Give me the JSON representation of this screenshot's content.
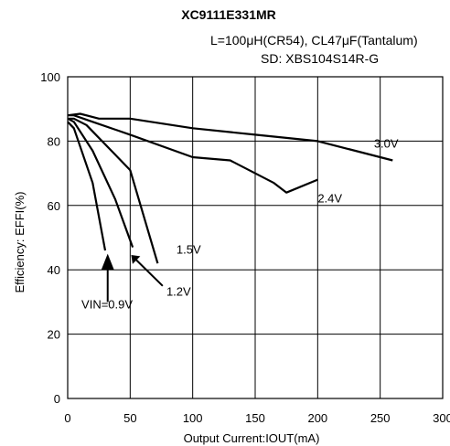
{
  "header": {
    "title": "XC9111E331MR",
    "subtitle_line1": "L=100μH(CR54), CL47μF(Tantalum)",
    "subtitle_line2": "SD: XBS104S14R-G"
  },
  "chart_data": {
    "type": "line",
    "title": "XC9111E331MR",
    "subtitle": "L=100μH(CR54), CL47μF(Tantalum) SD: XBS104S14R-G",
    "xlabel": "Output Current:IOUT(mA)",
    "ylabel": "Efficiency: EFFI(%)",
    "xlim": [
      0,
      300
    ],
    "ylim": [
      0,
      100
    ],
    "xticks": [
      "0",
      "50",
      "100",
      "150",
      "200",
      "250",
      "300"
    ],
    "yticks": [
      "0",
      "20",
      "40",
      "60",
      "80",
      "100"
    ],
    "grid": true,
    "series": [
      {
        "name": "3.0V",
        "x": [
          0,
          10,
          25,
          50,
          100,
          150,
          200,
          260
        ],
        "y": [
          88,
          88.5,
          87,
          87,
          84,
          82,
          80,
          74
        ]
      },
      {
        "name": "2.4V",
        "x": [
          0,
          5,
          20,
          50,
          100,
          130,
          165,
          175,
          200
        ],
        "y": [
          88,
          88,
          86,
          82,
          75,
          74,
          67,
          64,
          68
        ]
      },
      {
        "name": "1.5V",
        "x": [
          0,
          5,
          15,
          50,
          72
        ],
        "y": [
          87,
          87,
          85,
          71,
          42
        ]
      },
      {
        "name": "1.2V",
        "x": [
          0,
          5,
          20,
          38,
          52
        ],
        "y": [
          87,
          86,
          77,
          62,
          47
        ]
      },
      {
        "name": "VIN=0.9V",
        "x": [
          0,
          5,
          20,
          30
        ],
        "y": [
          86,
          84,
          67,
          46
        ]
      }
    ],
    "annotations": [
      "3.0V",
      "2.4V",
      "1.5V",
      "1.2V",
      "VIN=0.9V"
    ]
  }
}
